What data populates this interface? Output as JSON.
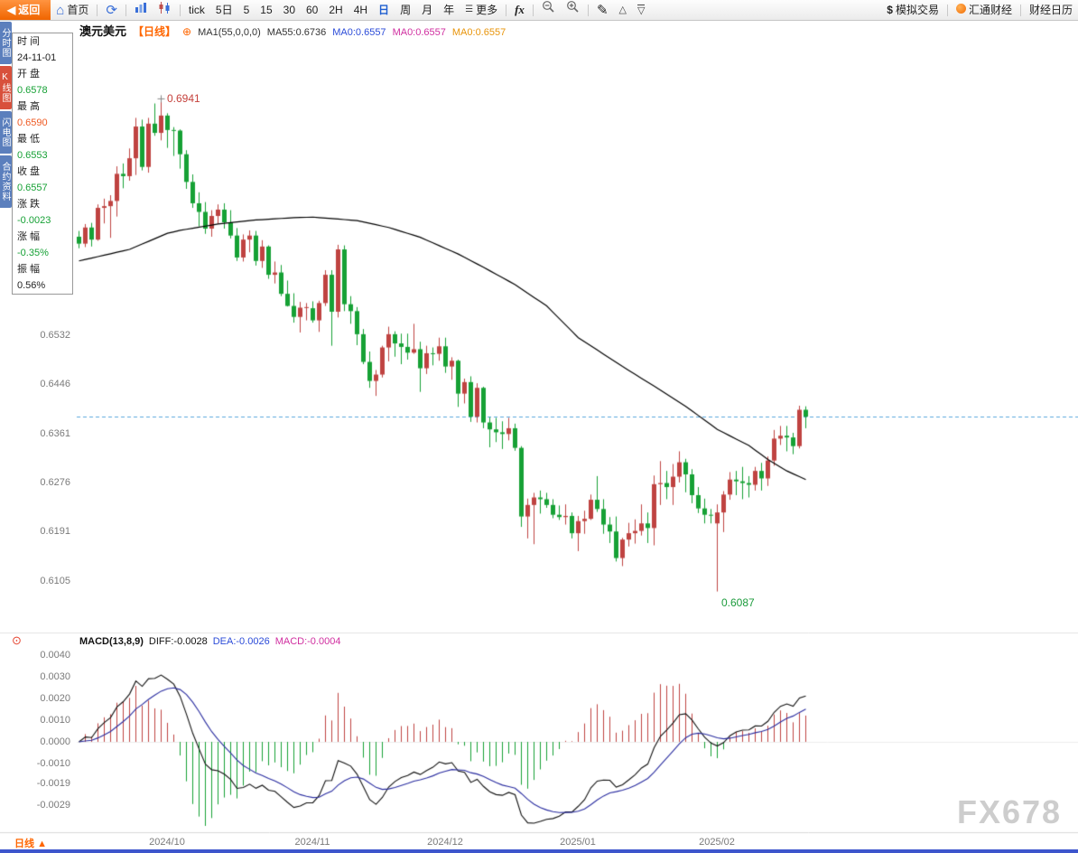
{
  "toolbar": {
    "items": [
      {
        "name": "back-button",
        "kind": "back",
        "icon": "arrow-left",
        "label": "返回"
      },
      {
        "name": "home-button",
        "kind": "text",
        "icon": "home",
        "label": "首页"
      },
      {
        "sep": true
      },
      {
        "name": "refresh-button",
        "kind": "icon",
        "icon": "refresh"
      },
      {
        "sep": true
      },
      {
        "name": "timeshare-chart-button",
        "kind": "icon",
        "icon": "bar-chart"
      },
      {
        "name": "kline-chart-button",
        "kind": "icon",
        "icon": "candles"
      },
      {
        "sep": true
      },
      {
        "name": "period-tick-button",
        "kind": "text",
        "label": "tick"
      },
      {
        "name": "period-5d-button",
        "kind": "text",
        "label": "5日"
      },
      {
        "name": "period-5m-button",
        "kind": "text",
        "label": "5"
      },
      {
        "name": "period-15m-button",
        "kind": "text",
        "label": "15"
      },
      {
        "name": "period-30m-button",
        "kind": "text",
        "label": "30"
      },
      {
        "name": "period-60m-button",
        "kind": "text",
        "label": "60"
      },
      {
        "name": "period-2h-button",
        "kind": "text",
        "label": "2H"
      },
      {
        "name": "period-4h-button",
        "kind": "text",
        "label": "4H"
      },
      {
        "name": "period-day-button",
        "kind": "text",
        "label": "日",
        "active": true
      },
      {
        "name": "period-week-button",
        "kind": "text",
        "label": "周"
      },
      {
        "name": "period-month-button",
        "kind": "text",
        "label": "月"
      },
      {
        "name": "period-year-button",
        "kind": "text",
        "label": "年"
      },
      {
        "name": "more-button",
        "kind": "text",
        "icon": "menu",
        "label": "更多"
      },
      {
        "sep": true
      },
      {
        "name": "indicator-fx-button",
        "kind": "fx",
        "label": "fx"
      },
      {
        "sep": true
      },
      {
        "name": "zoom-out-button",
        "kind": "icon",
        "icon": "zoom-out"
      },
      {
        "name": "zoom-in-button",
        "kind": "icon",
        "icon": "zoom-in"
      },
      {
        "sep": true
      },
      {
        "name": "draw-button",
        "kind": "icon",
        "icon": "pencil"
      },
      {
        "name": "channel-up-button",
        "kind": "icon",
        "icon": "tri-up"
      },
      {
        "name": "channel-down-button",
        "kind": "icon",
        "icon": "tri-down"
      },
      {
        "spacer": true
      },
      {
        "name": "sim-trade-button",
        "kind": "text",
        "icon": "dollar",
        "label": "模拟交易"
      },
      {
        "sep": true
      },
      {
        "name": "huitong-button",
        "kind": "text",
        "icon": "globe",
        "label": "汇通财经"
      },
      {
        "sep": true
      },
      {
        "name": "calendar-button",
        "kind": "text",
        "label": "财经日历"
      }
    ]
  },
  "sidebar": {
    "tabs": [
      {
        "name": "tab-timeshare",
        "label": "分时图",
        "active": false
      },
      {
        "name": "tab-kline",
        "label": "K线图",
        "active": true
      },
      {
        "name": "tab-lightning",
        "label": "闪电图",
        "active": false
      },
      {
        "name": "tab-contract-info",
        "label": "合约资料",
        "active": false
      }
    ]
  },
  "info_panel": {
    "rows": [
      {
        "label": "时 间",
        "value": "24-11-01",
        "tone": "neutral"
      },
      {
        "label": "开 盘",
        "value": "0.6578",
        "tone": "down"
      },
      {
        "label": "最 高",
        "value": "0.6590",
        "tone": "up"
      },
      {
        "label": "最 低",
        "value": "0.6553",
        "tone": "down"
      },
      {
        "label": "收 盘",
        "value": "0.6557",
        "tone": "down"
      },
      {
        "label": "涨 跌",
        "value": "-0.0023",
        "tone": "down"
      },
      {
        "label": "涨 幅",
        "value": "-0.35%",
        "tone": "down"
      },
      {
        "label": "振 幅",
        "value": "0.56%",
        "tone": "neutral"
      }
    ]
  },
  "chart_header": {
    "symbol": "澳元美元",
    "period_tag": "【日线】",
    "add_icon": "⊕",
    "ma_param": "MA1(55,0,0,0)",
    "ma55": "MA55:0.6736",
    "ma0_list": [
      {
        "text": "MA0:0.6557",
        "color": "#2b4bd8"
      },
      {
        "text": "MA0:0.6557",
        "color": "#d02fa0"
      },
      {
        "text": "MA0:0.6557",
        "color": "#e8940a"
      }
    ]
  },
  "price_axis": {
    "ticks": [
      "0.6532",
      "0.6446",
      "0.6361",
      "0.6276",
      "0.6191",
      "0.6105"
    ]
  },
  "macd_axis": {
    "ticks": [
      "0.0040",
      "0.0030",
      "0.0020",
      "0.0010",
      "0.0000",
      "-0.0010",
      "-0.0019",
      "-0.0029"
    ]
  },
  "x_axis": {
    "labels": [
      "2024/10",
      "2024/11",
      "2024/12",
      "2025/01",
      "2025/02"
    ]
  },
  "annotations": {
    "high": "0.6941",
    "low": "0.6087"
  },
  "macd_header": {
    "title": "MACD(13,8,9)",
    "items": [
      {
        "text": "DIFF:-0.0028",
        "color": "#111111"
      },
      {
        "text": "DEA:-0.0026",
        "color": "#2b4bd8"
      },
      {
        "text": "MACD:-0.0004",
        "color": "#d02fa0"
      }
    ]
  },
  "footer": {
    "period_label": "日线",
    "arrow": "▲"
  },
  "watermark": "FX678",
  "colors": {
    "up": "#bf4341",
    "down": "#16a135",
    "panel_up": "#ef5a23",
    "neutral": "#222222",
    "ma": "#000000",
    "diff": "#111111",
    "dea": "#2a2da0",
    "dashed": "#5aa7dd",
    "axis_text": "#7a7a7a",
    "accent": "#ff6600"
  },
  "chart_data": {
    "type": "candlestick+macd",
    "title": "澳元美元 日线 (AUD/USD daily)",
    "price_range": [
      0.6019,
      0.7045
    ],
    "last_price": 0.639,
    "macd_params": [
      13,
      8,
      9
    ],
    "ma55_keypoints": [
      [
        0,
        0.666
      ],
      [
        8,
        0.668
      ],
      [
        14,
        0.6708
      ],
      [
        16,
        0.6713
      ],
      [
        22,
        0.6724
      ],
      [
        28,
        0.6731
      ],
      [
        34,
        0.6735
      ],
      [
        37,
        0.6736
      ],
      [
        44,
        0.673
      ],
      [
        49,
        0.6718
      ],
      [
        54,
        0.6701
      ],
      [
        60,
        0.6672
      ],
      [
        64,
        0.6649
      ],
      [
        69,
        0.6619
      ],
      [
        74,
        0.6582
      ],
      [
        77,
        0.6549
      ],
      [
        79,
        0.6527
      ],
      [
        86,
        0.6477
      ],
      [
        91,
        0.6443
      ],
      [
        96,
        0.6408
      ],
      [
        101,
        0.6368
      ],
      [
        106,
        0.634
      ],
      [
        109,
        0.6316
      ],
      [
        112,
        0.6296
      ],
      [
        115,
        0.6281
      ]
    ],
    "candles": [
      [
        "2024-09-11",
        0.6702,
        0.6712,
        0.6682,
        0.669
      ],
      [
        "2024-09-12",
        0.669,
        0.6724,
        0.6684,
        0.6718
      ],
      [
        "2024-09-13",
        0.6718,
        0.6726,
        0.6685,
        0.6697
      ],
      [
        "2024-09-16",
        0.6697,
        0.6758,
        0.6695,
        0.6752
      ],
      [
        "2024-09-17",
        0.6752,
        0.6768,
        0.6725,
        0.6755
      ],
      [
        "2024-09-18",
        0.6755,
        0.6774,
        0.67,
        0.6764
      ],
      [
        "2024-09-19",
        0.6764,
        0.6824,
        0.6737,
        0.6811
      ],
      [
        "2024-09-20",
        0.6811,
        0.6829,
        0.6786,
        0.6807
      ],
      [
        "2024-09-23",
        0.6807,
        0.6855,
        0.6799,
        0.6838
      ],
      [
        "2024-09-24",
        0.6838,
        0.6908,
        0.6809,
        0.6893
      ],
      [
        "2024-09-25",
        0.6893,
        0.6905,
        0.6817,
        0.6823
      ],
      [
        "2024-09-26",
        0.6823,
        0.6908,
        0.6813,
        0.6898
      ],
      [
        "2024-09-27",
        0.6898,
        0.6933,
        0.6877,
        0.6882
      ],
      [
        "2024-09-30",
        0.6882,
        0.6941,
        0.6869,
        0.6912
      ],
      [
        "2024-10-01",
        0.6912,
        0.6916,
        0.6856,
        0.6887
      ],
      [
        "2024-10-02",
        0.6887,
        0.6892,
        0.6842,
        0.6886
      ],
      [
        "2024-10-03",
        0.6886,
        0.6888,
        0.682,
        0.6845
      ],
      [
        "2024-10-04",
        0.6845,
        0.6852,
        0.6785,
        0.6797
      ],
      [
        "2024-10-07",
        0.6797,
        0.681,
        0.6752,
        0.676
      ],
      [
        "2024-10-08",
        0.676,
        0.6779,
        0.672,
        0.6745
      ],
      [
        "2024-10-09",
        0.6745,
        0.6762,
        0.6707,
        0.6716
      ],
      [
        "2024-10-10",
        0.6716,
        0.6748,
        0.6702,
        0.6738
      ],
      [
        "2024-10-11",
        0.6738,
        0.6758,
        0.6724,
        0.6749
      ],
      [
        "2024-10-14",
        0.6749,
        0.676,
        0.6716,
        0.6727
      ],
      [
        "2024-10-15",
        0.6727,
        0.6748,
        0.6699,
        0.6704
      ],
      [
        "2024-10-16",
        0.6704,
        0.6717,
        0.666,
        0.6666
      ],
      [
        "2024-10-17",
        0.6666,
        0.6706,
        0.6659,
        0.6697
      ],
      [
        "2024-10-18",
        0.6697,
        0.6713,
        0.6675,
        0.6704
      ],
      [
        "2024-10-21",
        0.6704,
        0.6712,
        0.6652,
        0.666
      ],
      [
        "2024-10-22",
        0.666,
        0.6696,
        0.6648,
        0.6685
      ],
      [
        "2024-10-23",
        0.6685,
        0.6687,
        0.6629,
        0.6636
      ],
      [
        "2024-10-24",
        0.6636,
        0.6659,
        0.6621,
        0.664
      ],
      [
        "2024-10-25",
        0.664,
        0.6653,
        0.6599,
        0.6603
      ],
      [
        "2024-10-28",
        0.6603,
        0.6626,
        0.6581,
        0.6582
      ],
      [
        "2024-10-29",
        0.6582,
        0.6604,
        0.6553,
        0.6563
      ],
      [
        "2024-10-30",
        0.6563,
        0.6589,
        0.6536,
        0.6579
      ],
      [
        "2024-10-31",
        0.6579,
        0.6587,
        0.6557,
        0.658
      ],
      [
        "2024-11-01",
        0.6578,
        0.659,
        0.6553,
        0.6557
      ],
      [
        "2024-11-04",
        0.6557,
        0.6591,
        0.6537,
        0.6587
      ],
      [
        "2024-11-05",
        0.6587,
        0.6644,
        0.6582,
        0.6636
      ],
      [
        "2024-11-06",
        0.6636,
        0.6644,
        0.6513,
        0.6572
      ],
      [
        "2024-11-07",
        0.6572,
        0.6688,
        0.6562,
        0.668
      ],
      [
        "2024-11-08",
        0.668,
        0.6687,
        0.6573,
        0.6585
      ],
      [
        "2024-11-11",
        0.6585,
        0.6599,
        0.6551,
        0.6573
      ],
      [
        "2024-11-12",
        0.6573,
        0.658,
        0.6514,
        0.6533
      ],
      [
        "2024-11-13",
        0.6533,
        0.6542,
        0.6481,
        0.6485
      ],
      [
        "2024-11-14",
        0.6485,
        0.6503,
        0.644,
        0.6452
      ],
      [
        "2024-11-15",
        0.6452,
        0.6471,
        0.6426,
        0.6463
      ],
      [
        "2024-11-18",
        0.6463,
        0.6513,
        0.6458,
        0.651
      ],
      [
        "2024-11-19",
        0.651,
        0.6546,
        0.6486,
        0.6533
      ],
      [
        "2024-11-20",
        0.6533,
        0.6538,
        0.6494,
        0.6517
      ],
      [
        "2024-11-21",
        0.6517,
        0.6534,
        0.6481,
        0.6511
      ],
      [
        "2024-11-22",
        0.6511,
        0.6534,
        0.6489,
        0.6501
      ],
      [
        "2024-11-25",
        0.6501,
        0.6551,
        0.6499,
        0.6507
      ],
      [
        "2024-11-26",
        0.6507,
        0.652,
        0.6433,
        0.6474
      ],
      [
        "2024-11-27",
        0.6474,
        0.6513,
        0.6464,
        0.65
      ],
      [
        "2024-11-28",
        0.65,
        0.651,
        0.6479,
        0.6499
      ],
      [
        "2024-11-29",
        0.6499,
        0.6527,
        0.6487,
        0.6512
      ],
      [
        "2024-12-02",
        0.6512,
        0.6527,
        0.6466,
        0.6477
      ],
      [
        "2024-12-03",
        0.6477,
        0.6493,
        0.6454,
        0.6487
      ],
      [
        "2024-12-04",
        0.6487,
        0.6489,
        0.6407,
        0.643
      ],
      [
        "2024-12-05",
        0.643,
        0.6456,
        0.6413,
        0.645
      ],
      [
        "2024-12-06",
        0.645,
        0.646,
        0.6381,
        0.639
      ],
      [
        "2024-12-09",
        0.639,
        0.6448,
        0.638,
        0.644
      ],
      [
        "2024-12-10",
        0.644,
        0.6442,
        0.637,
        0.638
      ],
      [
        "2024-12-11",
        0.638,
        0.6389,
        0.6337,
        0.6368
      ],
      [
        "2024-12-12",
        0.6368,
        0.6388,
        0.6346,
        0.6363
      ],
      [
        "2024-12-13",
        0.6363,
        0.6382,
        0.6334,
        0.636
      ],
      [
        "2024-12-16",
        0.636,
        0.6388,
        0.6349,
        0.637
      ],
      [
        "2024-12-17",
        0.637,
        0.6378,
        0.6331,
        0.6336
      ],
      [
        "2024-12-18",
        0.6336,
        0.6339,
        0.6199,
        0.6217
      ],
      [
        "2024-12-19",
        0.6217,
        0.6248,
        0.6179,
        0.6237
      ],
      [
        "2024-12-20",
        0.6237,
        0.6258,
        0.6169,
        0.625
      ],
      [
        "2024-12-23",
        0.625,
        0.6262,
        0.6222,
        0.6247
      ],
      [
        "2024-12-24",
        0.6247,
        0.6258,
        0.6232,
        0.6237
      ],
      [
        "2024-12-26",
        0.6237,
        0.6247,
        0.6214,
        0.622
      ],
      [
        "2024-12-27",
        0.622,
        0.6236,
        0.6211,
        0.6216
      ],
      [
        "2024-12-30",
        0.6216,
        0.6238,
        0.6203,
        0.6218
      ],
      [
        "2024-12-31",
        0.6218,
        0.6224,
        0.6179,
        0.6188
      ],
      [
        "2025-01-02",
        0.6188,
        0.6218,
        0.6157,
        0.6209
      ],
      [
        "2025-01-03",
        0.6209,
        0.6227,
        0.6187,
        0.6213
      ],
      [
        "2025-01-06",
        0.6213,
        0.6255,
        0.6211,
        0.6246
      ],
      [
        "2025-01-07",
        0.6246,
        0.6287,
        0.6225,
        0.623
      ],
      [
        "2025-01-08",
        0.623,
        0.6247,
        0.6187,
        0.6203
      ],
      [
        "2025-01-09",
        0.6203,
        0.6216,
        0.6171,
        0.6191
      ],
      [
        "2025-01-10",
        0.6191,
        0.6217,
        0.6139,
        0.6145
      ],
      [
        "2025-01-13",
        0.6145,
        0.618,
        0.6131,
        0.6177
      ],
      [
        "2025-01-14",
        0.6177,
        0.6206,
        0.6165,
        0.6188
      ],
      [
        "2025-01-15",
        0.6188,
        0.6212,
        0.617,
        0.6192
      ],
      [
        "2025-01-16",
        0.6192,
        0.6238,
        0.6184,
        0.6205
      ],
      [
        "2025-01-17",
        0.6205,
        0.6224,
        0.6171,
        0.6197
      ],
      [
        "2025-01-20",
        0.6197,
        0.6288,
        0.6167,
        0.6273
      ],
      [
        "2025-01-21",
        0.6273,
        0.6313,
        0.6237,
        0.6275
      ],
      [
        "2025-01-22",
        0.6275,
        0.6296,
        0.6247,
        0.6268
      ],
      [
        "2025-01-23",
        0.6268,
        0.6308,
        0.6237,
        0.6286
      ],
      [
        "2025-01-24",
        0.6286,
        0.633,
        0.6276,
        0.6311
      ],
      [
        "2025-01-27",
        0.6311,
        0.6317,
        0.6259,
        0.629
      ],
      [
        "2025-01-28",
        0.629,
        0.6299,
        0.624,
        0.6254
      ],
      [
        "2025-01-29",
        0.6254,
        0.6268,
        0.6223,
        0.6231
      ],
      [
        "2025-01-30",
        0.6231,
        0.6248,
        0.6205,
        0.622
      ],
      [
        "2025-01-31",
        0.622,
        0.623,
        0.6205,
        0.6219
      ],
      [
        "2025-02-03",
        0.6205,
        0.6238,
        0.6087,
        0.6224
      ],
      [
        "2025-02-04",
        0.6224,
        0.6261,
        0.619,
        0.6255
      ],
      [
        "2025-02-05",
        0.6255,
        0.6294,
        0.6246,
        0.6281
      ],
      [
        "2025-02-06",
        0.6281,
        0.6296,
        0.6254,
        0.6278
      ],
      [
        "2025-02-07",
        0.6278,
        0.6303,
        0.6247,
        0.6275
      ],
      [
        "2025-02-10",
        0.6275,
        0.6287,
        0.625,
        0.6272
      ],
      [
        "2025-02-11",
        0.6272,
        0.6303,
        0.6262,
        0.6296
      ],
      [
        "2025-02-12",
        0.6296,
        0.631,
        0.6262,
        0.6283
      ],
      [
        "2025-02-13",
        0.6283,
        0.6321,
        0.627,
        0.6314
      ],
      [
        "2025-02-14",
        0.6314,
        0.6367,
        0.6305,
        0.6352
      ],
      [
        "2025-02-17",
        0.6352,
        0.6374,
        0.6341,
        0.6357
      ],
      [
        "2025-02-18",
        0.6357,
        0.6374,
        0.633,
        0.6354
      ],
      [
        "2025-02-19",
        0.6354,
        0.6362,
        0.6325,
        0.6339
      ],
      [
        "2025-02-20",
        0.6339,
        0.6409,
        0.6335,
        0.6402
      ],
      [
        "2025-02-21",
        0.6402,
        0.6408,
        0.637,
        0.639
      ]
    ]
  }
}
